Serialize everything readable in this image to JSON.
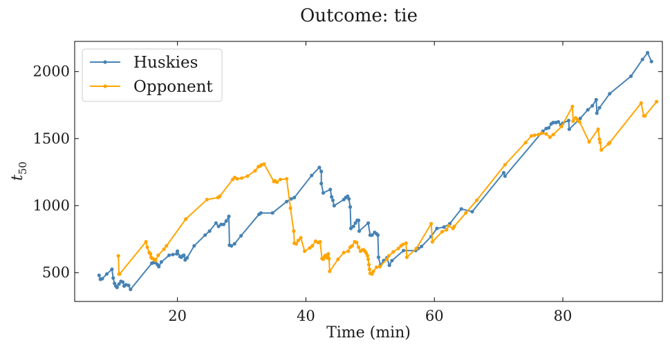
{
  "chart_data": {
    "type": "line",
    "title": "Outcome: tie",
    "xlabel": "Time (min)",
    "ylabel_base": "t",
    "ylabel_sub": "50",
    "xlim": [
      4,
      95.5
    ],
    "ylim": [
      285,
      2225
    ],
    "xticks": [
      20,
      40,
      60,
      80
    ],
    "yticks": [
      500,
      1000,
      1500,
      2000
    ],
    "legend_position": "upper left",
    "series": [
      {
        "name": "Huskies",
        "color": "#4682b4",
        "points": [
          [
            7.8,
            480
          ],
          [
            8.0,
            450
          ],
          [
            8.3,
            455
          ],
          [
            9.0,
            490
          ],
          [
            9.8,
            525
          ],
          [
            10.0,
            460
          ],
          [
            10.2,
            420
          ],
          [
            10.4,
            400
          ],
          [
            10.6,
            390
          ],
          [
            10.9,
            415
          ],
          [
            11.2,
            435
          ],
          [
            11.5,
            430
          ],
          [
            11.7,
            400
          ],
          [
            12.0,
            410
          ],
          [
            12.4,
            405
          ],
          [
            12.7,
            375
          ],
          [
            16.0,
            570
          ],
          [
            16.3,
            575
          ],
          [
            16.6,
            575
          ],
          [
            16.9,
            560
          ],
          [
            17.1,
            545
          ],
          [
            17.5,
            580
          ],
          [
            18.7,
            630
          ],
          [
            19.3,
            635
          ],
          [
            19.9,
            640
          ],
          [
            20.0,
            660
          ],
          [
            20.4,
            620
          ],
          [
            20.6,
            615
          ],
          [
            20.8,
            625
          ],
          [
            21.0,
            630
          ],
          [
            21.2,
            595
          ],
          [
            21.5,
            610
          ],
          [
            22.6,
            700
          ],
          [
            24.3,
            780
          ],
          [
            25.0,
            810
          ],
          [
            26.0,
            870
          ],
          [
            26.4,
            845
          ],
          [
            26.8,
            860
          ],
          [
            27.2,
            860
          ],
          [
            27.6,
            885
          ],
          [
            28.0,
            920
          ],
          [
            28.1,
            705
          ],
          [
            28.4,
            700
          ],
          [
            28.9,
            715
          ],
          [
            29.9,
            775
          ],
          [
            32.7,
            935
          ],
          [
            33.0,
            945
          ],
          [
            34.8,
            945
          ],
          [
            37.0,
            1030
          ],
          [
            37.7,
            1050
          ],
          [
            38.2,
            1060
          ],
          [
            40.9,
            1225
          ],
          [
            42.1,
            1285
          ],
          [
            42.4,
            1255
          ],
          [
            42.4,
            1165
          ],
          [
            42.7,
            1095
          ],
          [
            43.8,
            1120
          ],
          [
            44.0,
            1065
          ],
          [
            44.2,
            1040
          ],
          [
            44.4,
            1000
          ],
          [
            45.9,
            1045
          ],
          [
            46.2,
            1060
          ],
          [
            46.5,
            1070
          ],
          [
            46.7,
            1050
          ],
          [
            46.9,
            990
          ],
          [
            47.0,
            830
          ],
          [
            47.4,
            845
          ],
          [
            47.7,
            870
          ],
          [
            48.0,
            890
          ],
          [
            48.2,
            890
          ],
          [
            48.3,
            810
          ],
          [
            49.7,
            870
          ],
          [
            50.0,
            780
          ],
          [
            50.3,
            780
          ],
          [
            50.7,
            800
          ],
          [
            51.0,
            790
          ],
          [
            51.2,
            780
          ],
          [
            51.3,
            615
          ],
          [
            51.6,
            555
          ],
          [
            52.1,
            590
          ],
          [
            52.6,
            610
          ],
          [
            53.0,
            555
          ],
          [
            53.4,
            590
          ],
          [
            55.2,
            665
          ],
          [
            57.1,
            665
          ],
          [
            57.5,
            680
          ],
          [
            58.0,
            695
          ],
          [
            59.5,
            770
          ],
          [
            60.4,
            830
          ],
          [
            61.5,
            840
          ],
          [
            62.4,
            865
          ],
          [
            64.2,
            975
          ],
          [
            65.9,
            955
          ],
          [
            70.8,
            1245
          ],
          [
            71.0,
            1220
          ],
          [
            76.9,
            1555
          ],
          [
            77.4,
            1575
          ],
          [
            77.8,
            1580
          ],
          [
            78.2,
            1610
          ],
          [
            78.5,
            1620
          ],
          [
            78.9,
            1620
          ],
          [
            79.3,
            1625
          ],
          [
            79.7,
            1600
          ],
          [
            80.0,
            1615
          ],
          [
            80.9,
            1635
          ],
          [
            81.0,
            1570
          ],
          [
            82.7,
            1650
          ],
          [
            83.9,
            1715
          ],
          [
            84.6,
            1745
          ],
          [
            85.2,
            1790
          ],
          [
            85.3,
            1690
          ],
          [
            85.7,
            1730
          ],
          [
            87.3,
            1835
          ],
          [
            90.6,
            1965
          ],
          [
            92.4,
            2090
          ],
          [
            93.2,
            2140
          ],
          [
            93.8,
            2075
          ]
        ]
      },
      {
        "name": "Opponent",
        "color": "#ffa500",
        "points": [
          [
            10.8,
            625
          ],
          [
            10.9,
            490
          ],
          [
            11.0,
            490
          ],
          [
            15.1,
            730
          ],
          [
            15.3,
            690
          ],
          [
            15.6,
            650
          ],
          [
            15.8,
            640
          ],
          [
            15.9,
            615
          ],
          [
            16.1,
            605
          ],
          [
            16.4,
            600
          ],
          [
            16.6,
            590
          ],
          [
            17.0,
            630
          ],
          [
            17.9,
            675
          ],
          [
            18.3,
            700
          ],
          [
            21.3,
            900
          ],
          [
            24.6,
            1045
          ],
          [
            26.3,
            1060
          ],
          [
            26.6,
            1070
          ],
          [
            28.6,
            1195
          ],
          [
            28.9,
            1210
          ],
          [
            29.3,
            1200
          ],
          [
            30.0,
            1205
          ],
          [
            30.9,
            1220
          ],
          [
            32.1,
            1260
          ],
          [
            32.6,
            1290
          ],
          [
            32.9,
            1295
          ],
          [
            33.1,
            1305
          ],
          [
            33.5,
            1310
          ],
          [
            35.0,
            1180
          ],
          [
            35.2,
            1185
          ],
          [
            35.5,
            1175
          ],
          [
            36.0,
            1195
          ],
          [
            37.0,
            1200
          ],
          [
            37.6,
            980
          ],
          [
            38.1,
            810
          ],
          [
            38.2,
            720
          ],
          [
            38.5,
            715
          ],
          [
            38.8,
            740
          ],
          [
            39.2,
            760
          ],
          [
            39.8,
            660
          ],
          [
            40.6,
            685
          ],
          [
            41.0,
            700
          ],
          [
            41.5,
            735
          ],
          [
            41.9,
            725
          ],
          [
            42.2,
            730
          ],
          [
            42.5,
            605
          ],
          [
            42.7,
            600
          ],
          [
            42.9,
            620
          ],
          [
            43.1,
            630
          ],
          [
            43.3,
            610
          ],
          [
            43.5,
            640
          ],
          [
            43.6,
            605
          ],
          [
            43.7,
            510
          ],
          [
            45.0,
            600
          ],
          [
            45.9,
            650
          ],
          [
            46.6,
            660
          ],
          [
            46.9,
            690
          ],
          [
            47.2,
            700
          ],
          [
            47.6,
            730
          ],
          [
            47.9,
            725
          ],
          [
            48.2,
            690
          ],
          [
            48.5,
            660
          ],
          [
            48.8,
            670
          ],
          [
            49.0,
            670
          ],
          [
            49.2,
            660
          ],
          [
            49.4,
            645
          ],
          [
            49.6,
            625
          ],
          [
            49.7,
            600
          ],
          [
            49.8,
            560
          ],
          [
            49.9,
            525
          ],
          [
            50.0,
            495
          ],
          [
            50.3,
            490
          ],
          [
            50.5,
            510
          ],
          [
            51.0,
            540
          ],
          [
            51.5,
            545
          ],
          [
            52.6,
            600
          ],
          [
            52.9,
            625
          ],
          [
            53.6,
            655
          ],
          [
            54.4,
            680
          ],
          [
            54.8,
            700
          ],
          [
            55.1,
            710
          ],
          [
            55.6,
            720
          ],
          [
            55.7,
            615
          ],
          [
            57.2,
            680
          ],
          [
            59.5,
            865
          ],
          [
            59.7,
            730
          ],
          [
            61.2,
            805
          ],
          [
            61.9,
            820
          ],
          [
            62.2,
            850
          ],
          [
            62.9,
            830
          ],
          [
            63.1,
            845
          ],
          [
            64.9,
            945
          ],
          [
            66.6,
            1040
          ],
          [
            71.0,
            1305
          ],
          [
            74.2,
            1470
          ],
          [
            75.1,
            1520
          ],
          [
            75.6,
            1525
          ],
          [
            76.2,
            1530
          ],
          [
            76.7,
            1540
          ],
          [
            77.4,
            1535
          ],
          [
            78.0,
            1510
          ],
          [
            78.5,
            1530
          ],
          [
            79.8,
            1590
          ],
          [
            81.5,
            1740
          ],
          [
            81.6,
            1630
          ],
          [
            82.0,
            1655
          ],
          [
            82.3,
            1640
          ],
          [
            82.6,
            1625
          ],
          [
            84.1,
            1475
          ],
          [
            85.5,
            1570
          ],
          [
            85.7,
            1495
          ],
          [
            85.8,
            1470
          ],
          [
            86.0,
            1415
          ],
          [
            87.1,
            1460
          ],
          [
            87.3,
            1470
          ],
          [
            92.2,
            1765
          ],
          [
            92.6,
            1670
          ],
          [
            92.8,
            1670
          ],
          [
            94.6,
            1775
          ]
        ]
      }
    ]
  }
}
